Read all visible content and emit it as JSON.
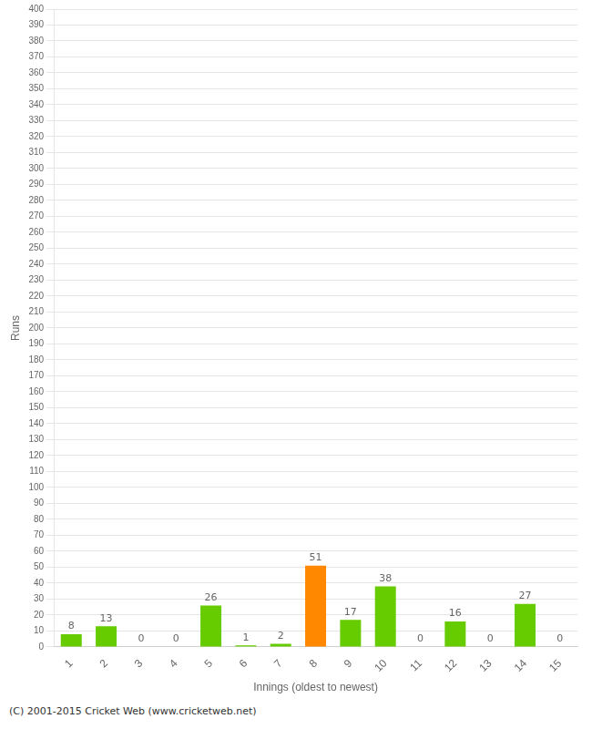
{
  "chart_data": {
    "type": "bar",
    "xlabel": "Innings (oldest to newest)",
    "ylabel": "Runs",
    "categories": [
      1,
      2,
      3,
      4,
      5,
      6,
      7,
      8,
      9,
      10,
      11,
      12,
      13,
      14,
      15
    ],
    "values": [
      8,
      13,
      0,
      0,
      26,
      1,
      2,
      51,
      17,
      38,
      0,
      16,
      0,
      27,
      0
    ],
    "colors": [
      "#66cc00",
      "#66cc00",
      "#66cc00",
      "#66cc00",
      "#66cc00",
      "#66cc00",
      "#66cc00",
      "#ff8800",
      "#66cc00",
      "#66cc00",
      "#66cc00",
      "#66cc00",
      "#66cc00",
      "#66cc00",
      "#66cc00"
    ],
    "ylim": [
      0,
      400
    ],
    "yticks": [
      0,
      10,
      20,
      30,
      40,
      50,
      60,
      70,
      80,
      90,
      100,
      110,
      120,
      130,
      140,
      150,
      160,
      170,
      180,
      190,
      200,
      210,
      220,
      230,
      240,
      250,
      260,
      270,
      280,
      290,
      300,
      310,
      320,
      330,
      340,
      350,
      360,
      370,
      380,
      390,
      400
    ],
    "grid": true,
    "data_labels": true,
    "annotations": [
      "(C) 2001-2015 Cricket Web (www.cricketweb.net)"
    ]
  }
}
